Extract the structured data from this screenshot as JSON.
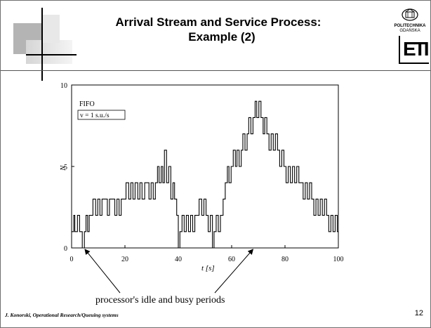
{
  "slide": {
    "title_line1": "Arrival Stream and Service Process:",
    "title_line2": "Example (2)",
    "logo": {
      "university": "POLITECHNIKA",
      "city": "GDAŃSKA",
      "mark": "ETI"
    },
    "footer": "J. Konorski, Operational Research/Queuing systems",
    "page_number": "12",
    "annotation": "processor's idle and busy periods",
    "colors": {
      "grey_block": "#b0b0b0",
      "light_block": "#e2e2e2",
      "line": "#000000"
    }
  },
  "chart_data": {
    "type": "line",
    "xlabel": "t  [s]",
    "ylabel": "N",
    "xlim": [
      0,
      100
    ],
    "ylim": [
      0,
      10
    ],
    "x_ticks": [
      0,
      20,
      40,
      60,
      80,
      100
    ],
    "y_ticks": [
      0,
      5,
      10
    ],
    "legend": {
      "line1": "FIFO",
      "line2": "v = 1 s.u./s"
    },
    "grid": false,
    "annotation_arrows_to_x": [
      5,
      68
    ],
    "series": [
      {
        "x": [
          0,
          0.8,
          1.2,
          2.2,
          3.0,
          4.0,
          4.8,
          5.4,
          6.0,
          6.6,
          7.2,
          8.0,
          9.0,
          9.8,
          10.6,
          11.4,
          12.4,
          13.4,
          14.2,
          15.2,
          16.2,
          17.0,
          17.8,
          18.6,
          19.6,
          20.4,
          21.4,
          22.2,
          23.0,
          23.8,
          24.8,
          25.6,
          26.4,
          27.4,
          28.2,
          29.0,
          29.8,
          30.6,
          31.4,
          32.2,
          32.8,
          33.6,
          34.2,
          34.8,
          35.6,
          36.4,
          37.2,
          38.0,
          38.6,
          39.4,
          40.0,
          40.6,
          41.4,
          42.2,
          43.0,
          43.8,
          44.6,
          45.4,
          46.2,
          47.0,
          47.8,
          48.8,
          49.6,
          50.4,
          51.2,
          52.0,
          52.8,
          53.4,
          54.2,
          55.0,
          55.8,
          56.8,
          57.6,
          58.4,
          59.0,
          59.8,
          60.6,
          61.4,
          62.0,
          62.8,
          63.6,
          64.2,
          65.0,
          65.8,
          66.4,
          67.2,
          68.0,
          68.8,
          69.4,
          70.2,
          71.0,
          71.8,
          72.4,
          73.2,
          74.0,
          74.8,
          75.6,
          76.4,
          77.2,
          78.0,
          78.8,
          79.6,
          80.4,
          81.2,
          82.0,
          82.8,
          83.6,
          84.4,
          85.2,
          86.0,
          86.8,
          87.6,
          88.4,
          89.2,
          90.0,
          90.8,
          91.6,
          92.4,
          93.2,
          94.0,
          94.8,
          95.6,
          96.4,
          97.2,
          98.0,
          98.8,
          99.6,
          100
        ],
        "y": [
          1,
          2,
          1,
          2,
          1,
          0,
          1,
          2,
          1,
          2,
          2,
          3,
          2,
          3,
          2,
          3,
          3,
          2,
          3,
          3,
          2,
          3,
          2,
          3,
          3,
          4,
          3,
          4,
          3,
          4,
          3,
          4,
          3,
          4,
          4,
          3,
          4,
          3,
          4,
          5,
          4,
          5,
          4,
          6,
          4,
          5,
          3,
          4,
          3,
          2,
          0,
          1,
          2,
          1,
          2,
          1,
          2,
          1,
          2,
          2,
          3,
          2,
          3,
          2,
          1,
          2,
          0,
          1,
          2,
          1,
          2,
          3,
          4,
          5,
          4,
          5,
          6,
          5,
          6,
          5,
          6,
          7,
          6,
          7,
          8,
          7,
          8,
          9,
          8,
          9,
          8,
          7,
          8,
          7,
          6,
          7,
          6,
          7,
          6,
          5,
          6,
          5,
          4,
          5,
          4,
          5,
          4,
          5,
          4,
          4,
          3,
          4,
          3,
          4,
          3,
          2,
          3,
          2,
          3,
          2,
          3,
          2,
          1,
          2,
          1,
          2,
          1,
          1
        ]
      }
    ]
  }
}
